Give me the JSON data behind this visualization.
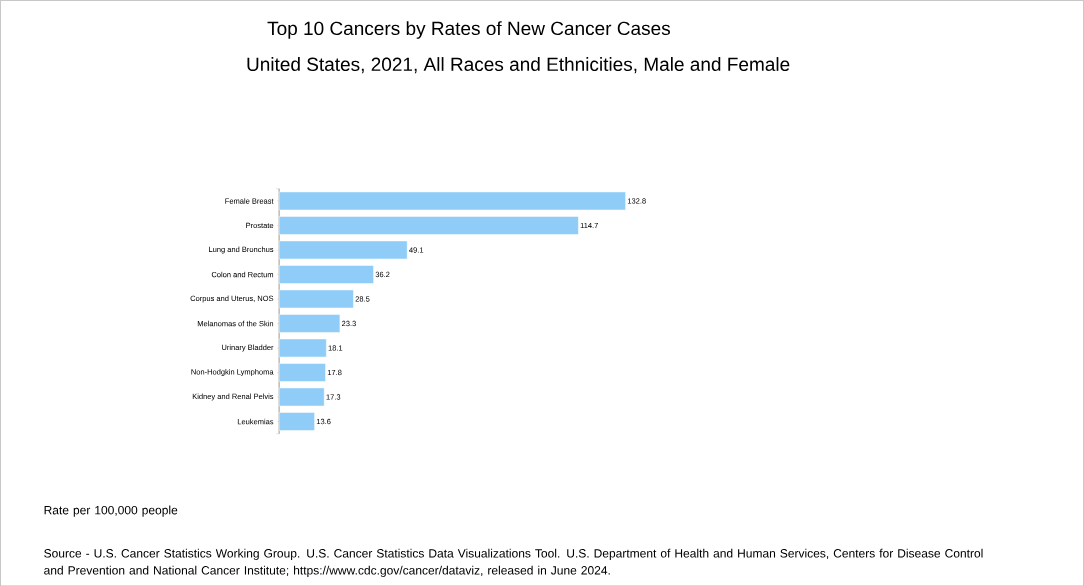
{
  "chart_data": {
    "type": "bar",
    "orientation": "horizontal",
    "title": "Top 10 Cancers by Rates of New Cancer Cases",
    "subtitle": "United States, 2021, All Races and Ethnicities, Male and Female",
    "categories": [
      "Female Breast",
      "Prostate",
      "Lung and Bronchus",
      "Colon and Rectum",
      "Corpus and Uterus, NOS",
      "Melanomas of the Skin",
      "Urinary Bladder",
      "Non-Hodgkin Lymphoma",
      "Kidney and Renal Pelvis",
      "Leukemias"
    ],
    "values": [
      132.8,
      114.7,
      49.1,
      36.2,
      28.5,
      23.3,
      18.1,
      17.8,
      17.3,
      13.6
    ],
    "color": "#8fcdf8",
    "data_labels": true,
    "annotations": [
      "Rate per 100,000 people",
      "Source - U.S. Cancer Statistics Working Group. U.S. Cancer Statistics Data Visualizations Tool. U.S. Department of Health and Human Services, Centers for Disease Control and Prevention and National Cancer Institute; https://www.cdc.gov/cancer/dataviz, released in June 2024."
    ]
  }
}
